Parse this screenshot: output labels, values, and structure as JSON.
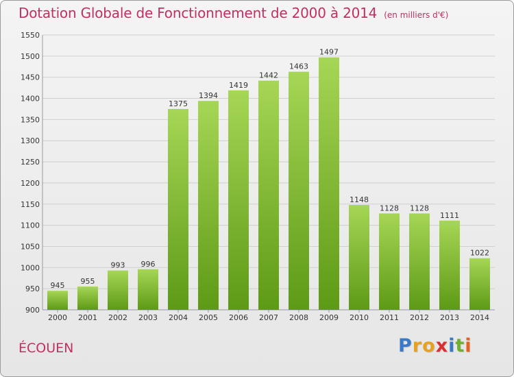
{
  "header": {
    "title": "Dotation Globale de Fonctionnement de 2000 à 2014",
    "subtitle": "(en milliers d'€)"
  },
  "footer": {
    "commune": "ÉCOUEN",
    "logo_letters": [
      "P",
      "r",
      "o",
      "x",
      "i",
      "t",
      "i"
    ],
    "logo_colors": [
      "#3a78c8",
      "#e8a020",
      "#e8a020",
      "#d83030",
      "#3a78c8",
      "#70b030",
      "#e86020"
    ]
  },
  "colors": {
    "bar_top": "#a6d655",
    "bar_bottom": "#5d9a15",
    "grid": "#cfcfcf",
    "title": "#c03060"
  },
  "chart_data": {
    "type": "bar",
    "title": "Dotation Globale de Fonctionnement de 2000 à 2014",
    "subtitle": "(en milliers d'€)",
    "xlabel": "",
    "ylabel": "",
    "categories": [
      "2000",
      "2001",
      "2002",
      "2003",
      "2004",
      "2005",
      "2006",
      "2007",
      "2008",
      "2009",
      "2010",
      "2011",
      "2012",
      "2013",
      "2014"
    ],
    "values": [
      945,
      955,
      993,
      996,
      1375,
      1394,
      1419,
      1442,
      1463,
      1497,
      1148,
      1128,
      1128,
      1111,
      1022
    ],
    "ylim": [
      900,
      1550
    ],
    "yticks": [
      900,
      950,
      1000,
      1050,
      1100,
      1150,
      1200,
      1250,
      1300,
      1350,
      1400,
      1450,
      1500,
      1550
    ],
    "grid": true,
    "data_labels": true
  }
}
